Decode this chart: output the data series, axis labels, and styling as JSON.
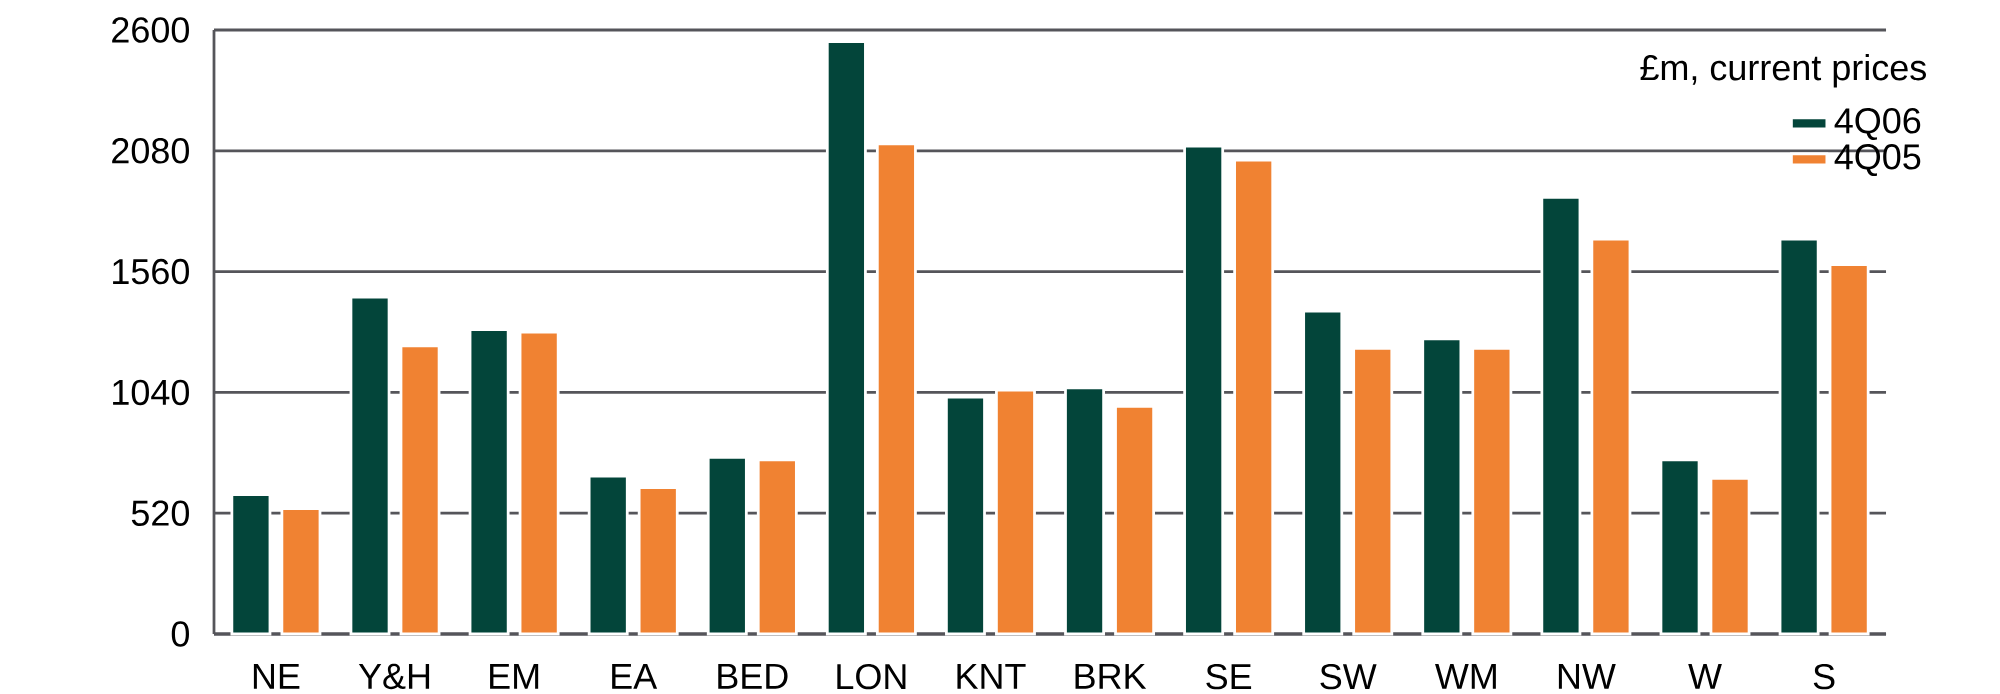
{
  "chart_data": {
    "type": "bar",
    "legend_title": "£m, current prices",
    "categories": [
      "NE",
      "Y&H",
      "EM",
      "EA",
      "BED",
      "LON",
      "KNT",
      "BRK",
      "SE",
      "SW",
      "WM",
      "NW",
      "W",
      "S"
    ],
    "series": [
      {
        "name": "4Q06",
        "color": "#03453a",
        "values": [
          600,
          1450,
          1310,
          680,
          760,
          2550,
          1020,
          1060,
          2100,
          1390,
          1270,
          1880,
          750,
          1700
        ]
      },
      {
        "name": "4Q05",
        "color": "#f08232",
        "values": [
          540,
          1240,
          1300,
          630,
          750,
          2110,
          1050,
          980,
          2040,
          1230,
          1230,
          1700,
          670,
          1590
        ]
      }
    ],
    "ylim": [
      0,
      2600
    ],
    "yticks": [
      0,
      520,
      1040,
      1560,
      2080,
      2600
    ],
    "grid": "y",
    "legend": "top right"
  }
}
